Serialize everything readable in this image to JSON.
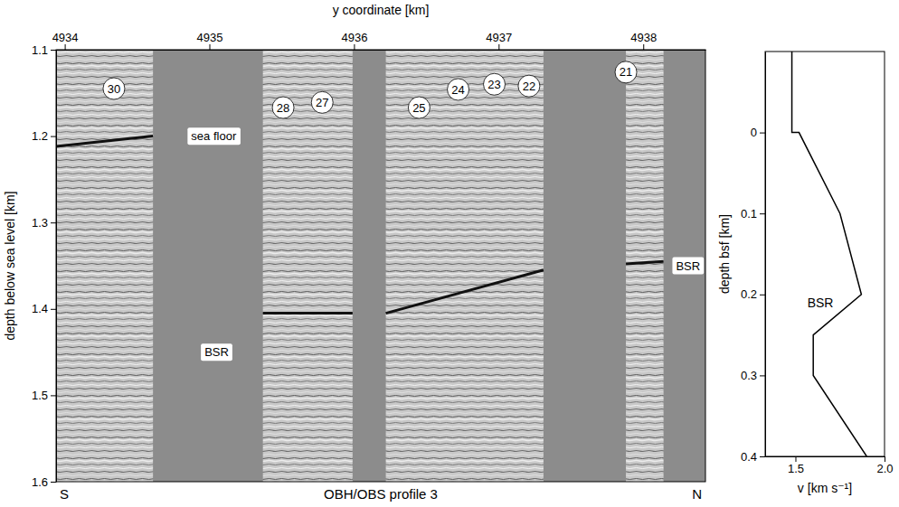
{
  "chart_data": [
    {
      "type": "image",
      "xlabel": "y coordinate [km]",
      "ylabel": "depth below sea level [km]",
      "footer": "OBH/OBS profile 3",
      "ends": [
        "S",
        "N"
      ],
      "xlim": [
        4933.94,
        4938.43
      ],
      "xticks": [
        4934,
        4935,
        4936,
        4937,
        4938
      ],
      "ylim": [
        1.1,
        1.6
      ],
      "yticks": [
        1.1,
        1.2,
        1.3,
        1.4,
        1.5,
        1.6
      ],
      "panels": [
        [
          4933.94,
          4934.61
        ],
        [
          4935.37,
          4935.99
        ],
        [
          4936.22,
          4937.31
        ],
        [
          4937.88,
          4938.14
        ]
      ],
      "reflectors": [
        {
          "x": [
            4933.94,
            4934.61
          ],
          "y": [
            1.212,
            1.2
          ]
        },
        {
          "x": [
            4935.37,
            4935.99
          ],
          "y": [
            1.405,
            1.405
          ]
        },
        {
          "x": [
            4936.22,
            4937.31
          ],
          "y": [
            1.405,
            1.355
          ]
        },
        {
          "x": [
            4937.88,
            4938.14
          ],
          "y": [
            1.348,
            1.345
          ]
        }
      ],
      "stations": [
        {
          "label": "30",
          "x": 4934.34,
          "y": 1.145
        },
        {
          "label": "28",
          "x": 4935.51,
          "y": 1.167
        },
        {
          "label": "27",
          "x": 4935.78,
          "y": 1.161
        },
        {
          "label": "25",
          "x": 4936.45,
          "y": 1.167
        },
        {
          "label": "24",
          "x": 4936.72,
          "y": 1.146
        },
        {
          "label": "23",
          "x": 4936.97,
          "y": 1.14
        },
        {
          "label": "22",
          "x": 4937.21,
          "y": 1.142
        },
        {
          "label": "21",
          "x": 4937.88,
          "y": 1.126
        }
      ],
      "annotations": [
        {
          "text": "sea floor",
          "x": 4935.03,
          "y": 1.2
        },
        {
          "text": "BSR",
          "x": 4935.05,
          "y": 1.45
        },
        {
          "text": "BSR",
          "x": 4938.31,
          "y": 1.35
        }
      ]
    },
    {
      "type": "line",
      "xlabel": "v [km s⁻¹]",
      "ylabel": "depth bsf [km]",
      "xlim": [
        1.33,
        2.0
      ],
      "xticks": [
        1.5,
        {
          "value": 2,
          "label": "2.0"
        }
      ],
      "ylim": [
        -0.1,
        0.4
      ],
      "yticks": [
        0,
        0.1,
        0.2,
        0.3,
        0.4
      ],
      "x": [
        1.48,
        1.48,
        1.52,
        1.75,
        1.87,
        1.6,
        1.6,
        1.9
      ],
      "values": [
        -0.1,
        0,
        0,
        0.1,
        0.2,
        0.25,
        0.3,
        0.4
      ],
      "color": "#000000",
      "annotations": [
        {
          "text": "BSR",
          "x": 1.64,
          "y": 0.21
        }
      ]
    }
  ]
}
